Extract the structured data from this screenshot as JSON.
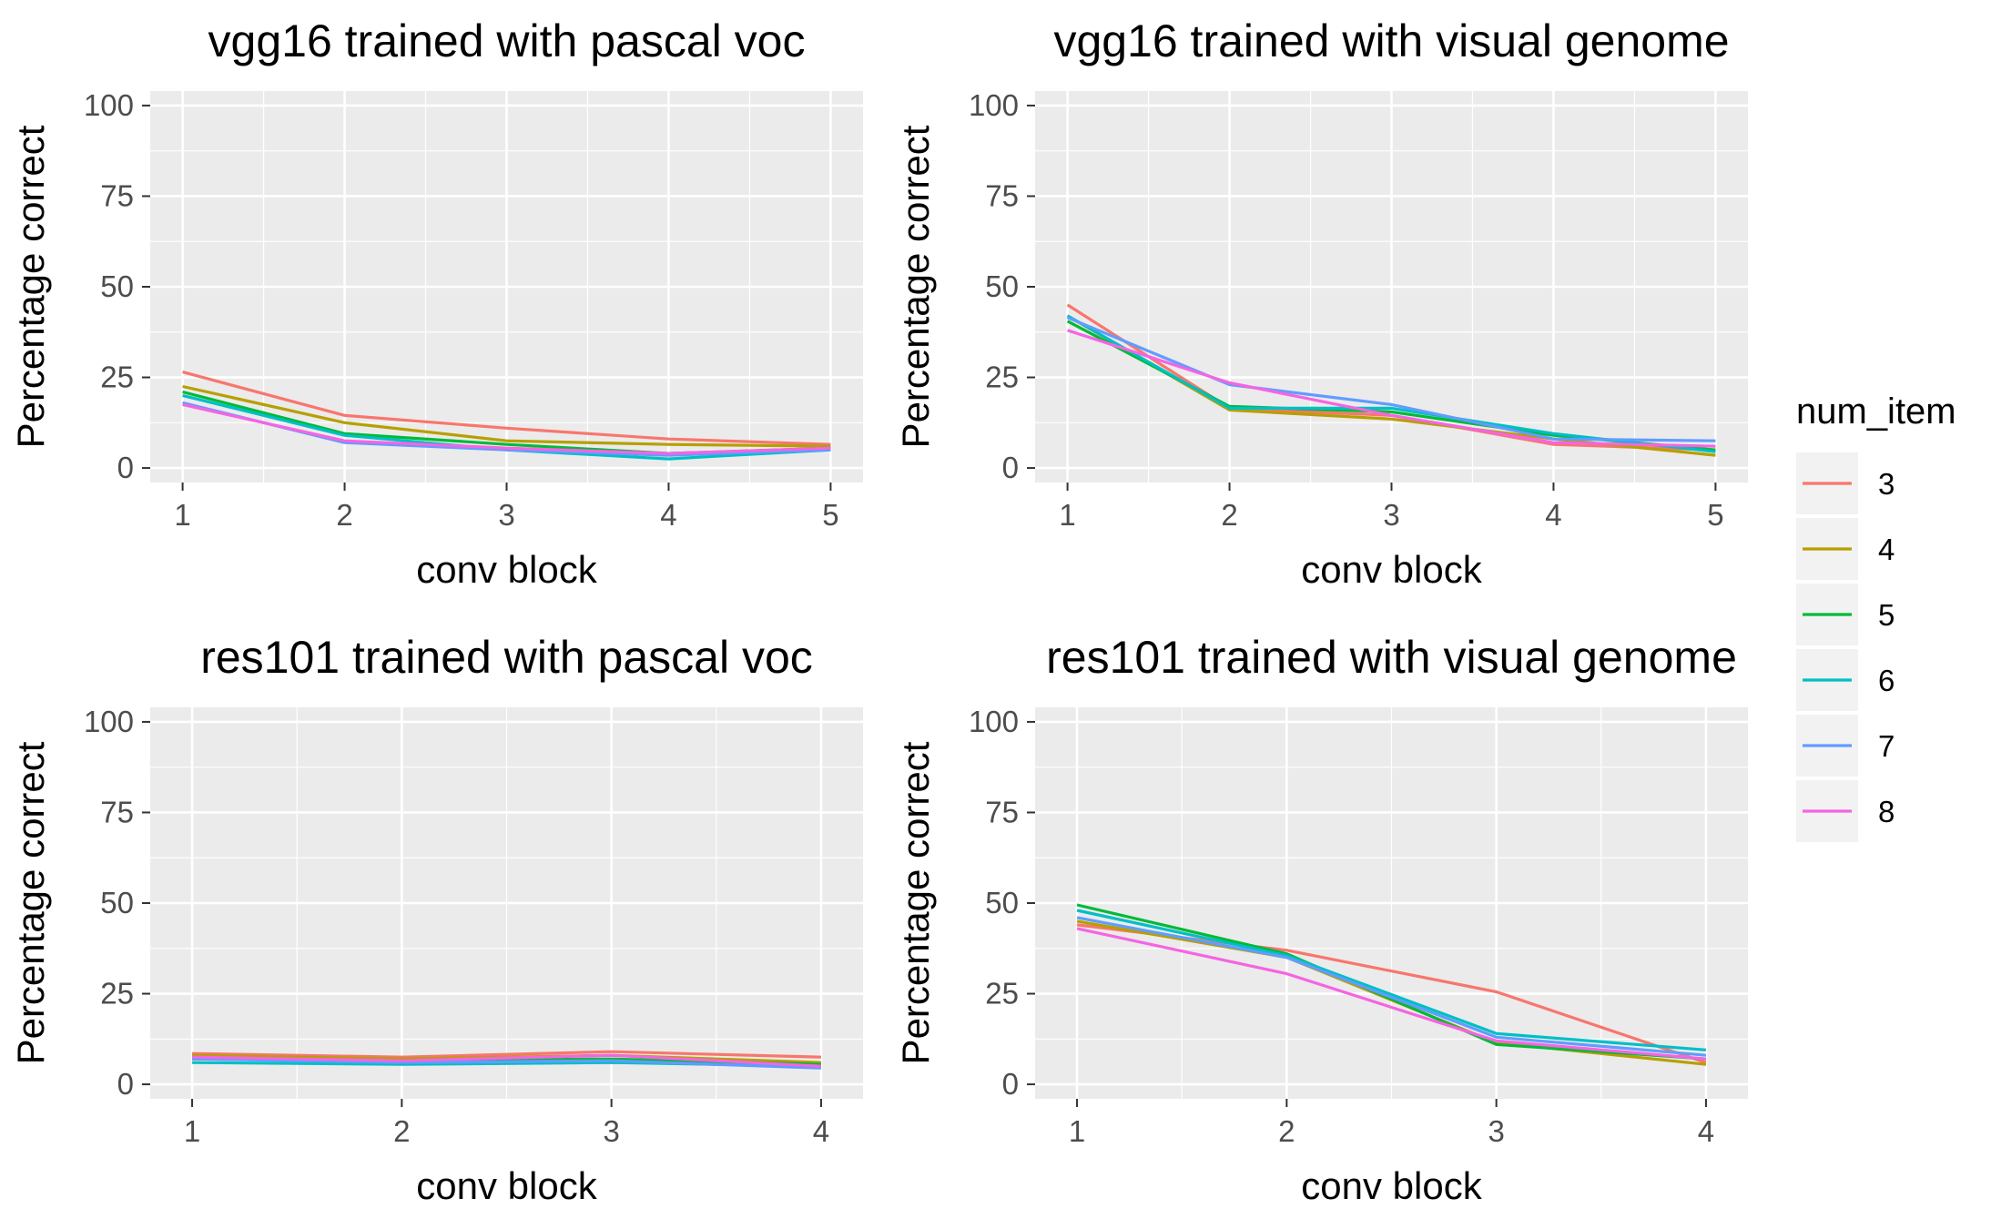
{
  "figure": {
    "legend": {
      "title": "num_item",
      "placement": "right"
    }
  },
  "chart_data": [
    {
      "type": "line",
      "title": "vgg16 trained with pascal voc",
      "xlabel": "conv block",
      "ylabel": "Percentage correct",
      "x": [
        1,
        2,
        3,
        4,
        5
      ],
      "xlim": [
        0.8,
        5.2
      ],
      "ylim": [
        -4,
        104
      ],
      "yticks": [
        0,
        25,
        50,
        75,
        100
      ],
      "grid": true,
      "series": [
        {
          "name": "3",
          "color": "#F8766D",
          "values": [
            26.5,
            14.5,
            11,
            8,
            6.5
          ]
        },
        {
          "name": "4",
          "color": "#B79F00",
          "values": [
            22.5,
            12.5,
            7.5,
            6.5,
            6
          ]
        },
        {
          "name": "5",
          "color": "#00BA38",
          "values": [
            21,
            9.5,
            6.5,
            4,
            5.5
          ]
        },
        {
          "name": "6",
          "color": "#00BFC4",
          "values": [
            20,
            9,
            5,
            2.5,
            5
          ]
        },
        {
          "name": "7",
          "color": "#619CFF",
          "values": [
            18,
            7,
            5,
            3.5,
            5
          ]
        },
        {
          "name": "8",
          "color": "#F564E3",
          "values": [
            17.5,
            7.5,
            5.5,
            4,
            5.5
          ]
        }
      ]
    },
    {
      "type": "line",
      "title": "vgg16 trained with visual genome",
      "xlabel": "conv block",
      "ylabel": "Percentage correct",
      "x": [
        1,
        2,
        3,
        4,
        5
      ],
      "xlim": [
        0.8,
        5.2
      ],
      "ylim": [
        -4,
        104
      ],
      "yticks": [
        0,
        25,
        50,
        75,
        100
      ],
      "grid": true,
      "series": [
        {
          "name": "3",
          "color": "#F8766D",
          "values": [
            45,
            16.5,
            14.5,
            6.5,
            5
          ]
        },
        {
          "name": "4",
          "color": "#B79F00",
          "values": [
            42,
            16,
            13.5,
            8,
            3.5
          ]
        },
        {
          "name": "5",
          "color": "#00BA38",
          "values": [
            40.5,
            17,
            15.5,
            9,
            5
          ]
        },
        {
          "name": "6",
          "color": "#00BFC4",
          "values": [
            42,
            16.5,
            16.5,
            9.5,
            4.5
          ]
        },
        {
          "name": "7",
          "color": "#619CFF",
          "values": [
            41.5,
            23,
            17.5,
            8,
            7.5
          ]
        },
        {
          "name": "8",
          "color": "#F564E3",
          "values": [
            38,
            23.5,
            14.5,
            7,
            6
          ]
        }
      ]
    },
    {
      "type": "line",
      "title": "res101 trained with pascal voc",
      "xlabel": "conv block",
      "ylabel": "Percentage correct",
      "x": [
        1,
        2,
        3,
        4
      ],
      "xlim": [
        0.8,
        4.2
      ],
      "ylim": [
        -4,
        104
      ],
      "yticks": [
        0,
        25,
        50,
        75,
        100
      ],
      "grid": true,
      "series": [
        {
          "name": "3",
          "color": "#F8766D",
          "values": [
            8.5,
            7.5,
            9,
            7.5
          ]
        },
        {
          "name": "4",
          "color": "#B79F00",
          "values": [
            8,
            7,
            8,
            6
          ]
        },
        {
          "name": "5",
          "color": "#00BA38",
          "values": [
            7,
            6.5,
            7,
            5.5
          ]
        },
        {
          "name": "6",
          "color": "#00BFC4",
          "values": [
            6,
            5.5,
            6,
            5
          ]
        },
        {
          "name": "7",
          "color": "#619CFF",
          "values": [
            7,
            6,
            6.5,
            4.5
          ]
        },
        {
          "name": "8",
          "color": "#F564E3",
          "values": [
            7.5,
            6.5,
            8,
            5
          ]
        }
      ]
    },
    {
      "type": "line",
      "title": "res101 trained with visual genome",
      "xlabel": "conv block",
      "ylabel": "Percentage correct",
      "x": [
        1,
        2,
        3,
        4
      ],
      "xlim": [
        0.8,
        4.2
      ],
      "ylim": [
        -4,
        104
      ],
      "yticks": [
        0,
        25,
        50,
        75,
        100
      ],
      "grid": true,
      "series": [
        {
          "name": "3",
          "color": "#F8766D",
          "values": [
            44,
            37,
            25.5,
            6
          ]
        },
        {
          "name": "4",
          "color": "#B79F00",
          "values": [
            45,
            35,
            11.5,
            5.5
          ]
        },
        {
          "name": "5",
          "color": "#00BA38",
          "values": [
            49.5,
            36,
            11,
            7
          ]
        },
        {
          "name": "6",
          "color": "#00BFC4",
          "values": [
            48,
            35.5,
            14,
            9.5
          ]
        },
        {
          "name": "7",
          "color": "#619CFF",
          "values": [
            46,
            35,
            13,
            8
          ]
        },
        {
          "name": "8",
          "color": "#F564E3",
          "values": [
            43,
            30.5,
            12,
            7
          ]
        }
      ]
    }
  ]
}
